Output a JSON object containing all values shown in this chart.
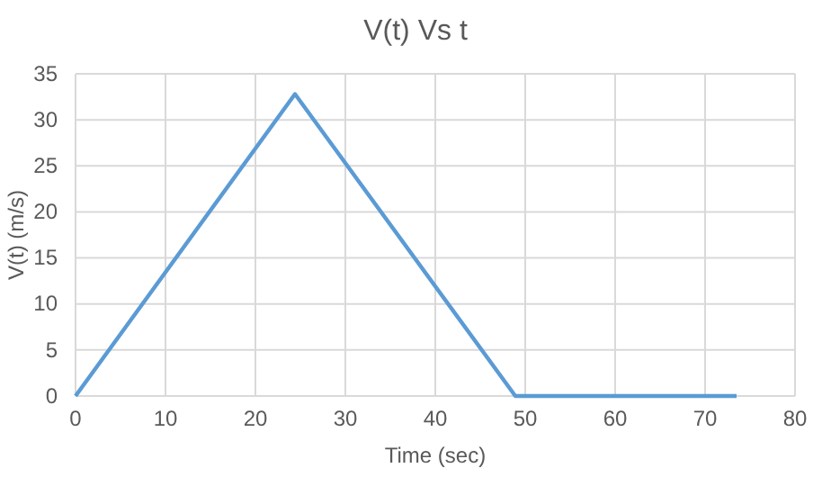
{
  "chart_data": {
    "type": "line",
    "title": "V(t) Vs t",
    "xlabel": "Time (sec)",
    "ylabel": "V(t) (m/s)",
    "x": [
      0,
      24.4,
      48.9,
      73.5
    ],
    "series": [
      {
        "color": "#5b9bd5",
        "values": [
          0,
          32.8,
          0,
          0
        ]
      }
    ],
    "xlim": [
      0,
      80
    ],
    "xticks": [
      0,
      10,
      20,
      30,
      40,
      50,
      60,
      70,
      80
    ],
    "ylim": [
      0,
      35
    ],
    "yticks": [
      0,
      5,
      10,
      15,
      20,
      25,
      30,
      35
    ],
    "grid": true,
    "marker": "none",
    "line_style": "solid"
  }
}
